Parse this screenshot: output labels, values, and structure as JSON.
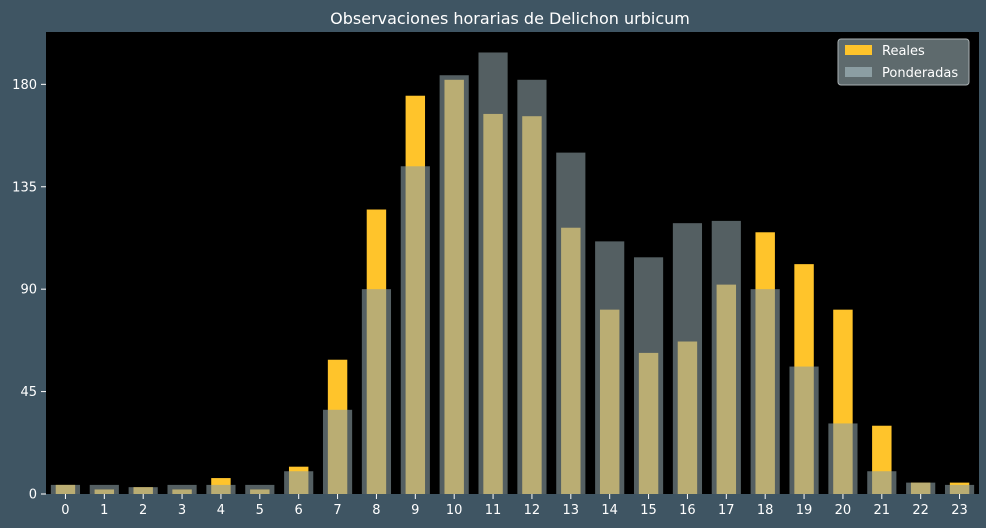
{
  "chart_data": {
    "type": "bar",
    "title": "Observaciones horarias de Delichon urbicum",
    "xlabel": "",
    "ylabel": "",
    "categories": [
      "0",
      "1",
      "2",
      "3",
      "4",
      "5",
      "6",
      "7",
      "8",
      "9",
      "10",
      "11",
      "12",
      "13",
      "14",
      "15",
      "16",
      "17",
      "18",
      "19",
      "20",
      "21",
      "22",
      "23"
    ],
    "series": [
      {
        "name": "Reales",
        "color": "#ffc42b",
        "values": [
          4,
          2,
          3,
          2,
          7,
          2,
          12,
          59,
          125,
          175,
          182,
          167,
          166,
          117,
          81,
          62,
          67,
          92,
          115,
          101,
          81,
          30,
          5,
          5
        ]
      },
      {
        "name": "Ponderadas",
        "color": "#8c9ea3",
        "values": [
          4,
          4,
          3,
          4,
          4,
          4,
          10,
          37,
          90,
          144,
          184,
          194,
          182,
          150,
          111,
          104,
          119,
          120,
          90,
          56,
          31,
          10,
          5,
          4
        ]
      }
    ],
    "yticks": [
      0,
      45,
      90,
      135,
      180
    ],
    "ylim": [
      0,
      203
    ],
    "legend_position": "top-right",
    "grid": false,
    "plot_background": "#000000",
    "figure_background": "#3f5563"
  }
}
